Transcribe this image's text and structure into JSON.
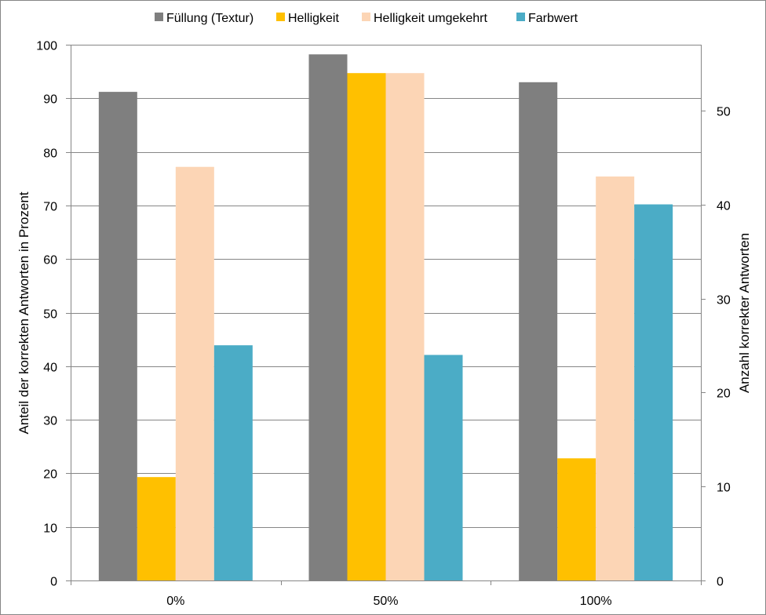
{
  "chart_data": {
    "type": "bar",
    "title": "",
    "categories": [
      "0%",
      "50%",
      "100%"
    ],
    "series": [
      {
        "name": "Füllung (Textur)",
        "color": "#7f7f7f",
        "values": [
          91.2,
          98.2,
          93.0
        ]
      },
      {
        "name": "Helligkeit",
        "color": "#ffc000",
        "values": [
          19.3,
          94.7,
          22.8
        ]
      },
      {
        "name": "Helligkeit umgekehrt",
        "color": "#fcd5b5",
        "values": [
          77.2,
          94.7,
          75.4
        ]
      },
      {
        "name": "Farbwert",
        "color": "#4bacc6",
        "values": [
          43.9,
          42.1,
          70.2
        ]
      }
    ],
    "ylabel": "Anteil der korrekten Antworten in Prozent",
    "ylim": [
      0,
      100
    ],
    "yticks": [
      "0",
      "10",
      "20",
      "30",
      "40",
      "50",
      "60",
      "70",
      "80",
      "90",
      "100"
    ],
    "y2label": "Anzahl korrekter Antworten",
    "y2lim": [
      0,
      57
    ],
    "y2ticks": [
      "0",
      "10",
      "20",
      "30",
      "40",
      "50"
    ],
    "grid": true,
    "legend_position": "top"
  }
}
